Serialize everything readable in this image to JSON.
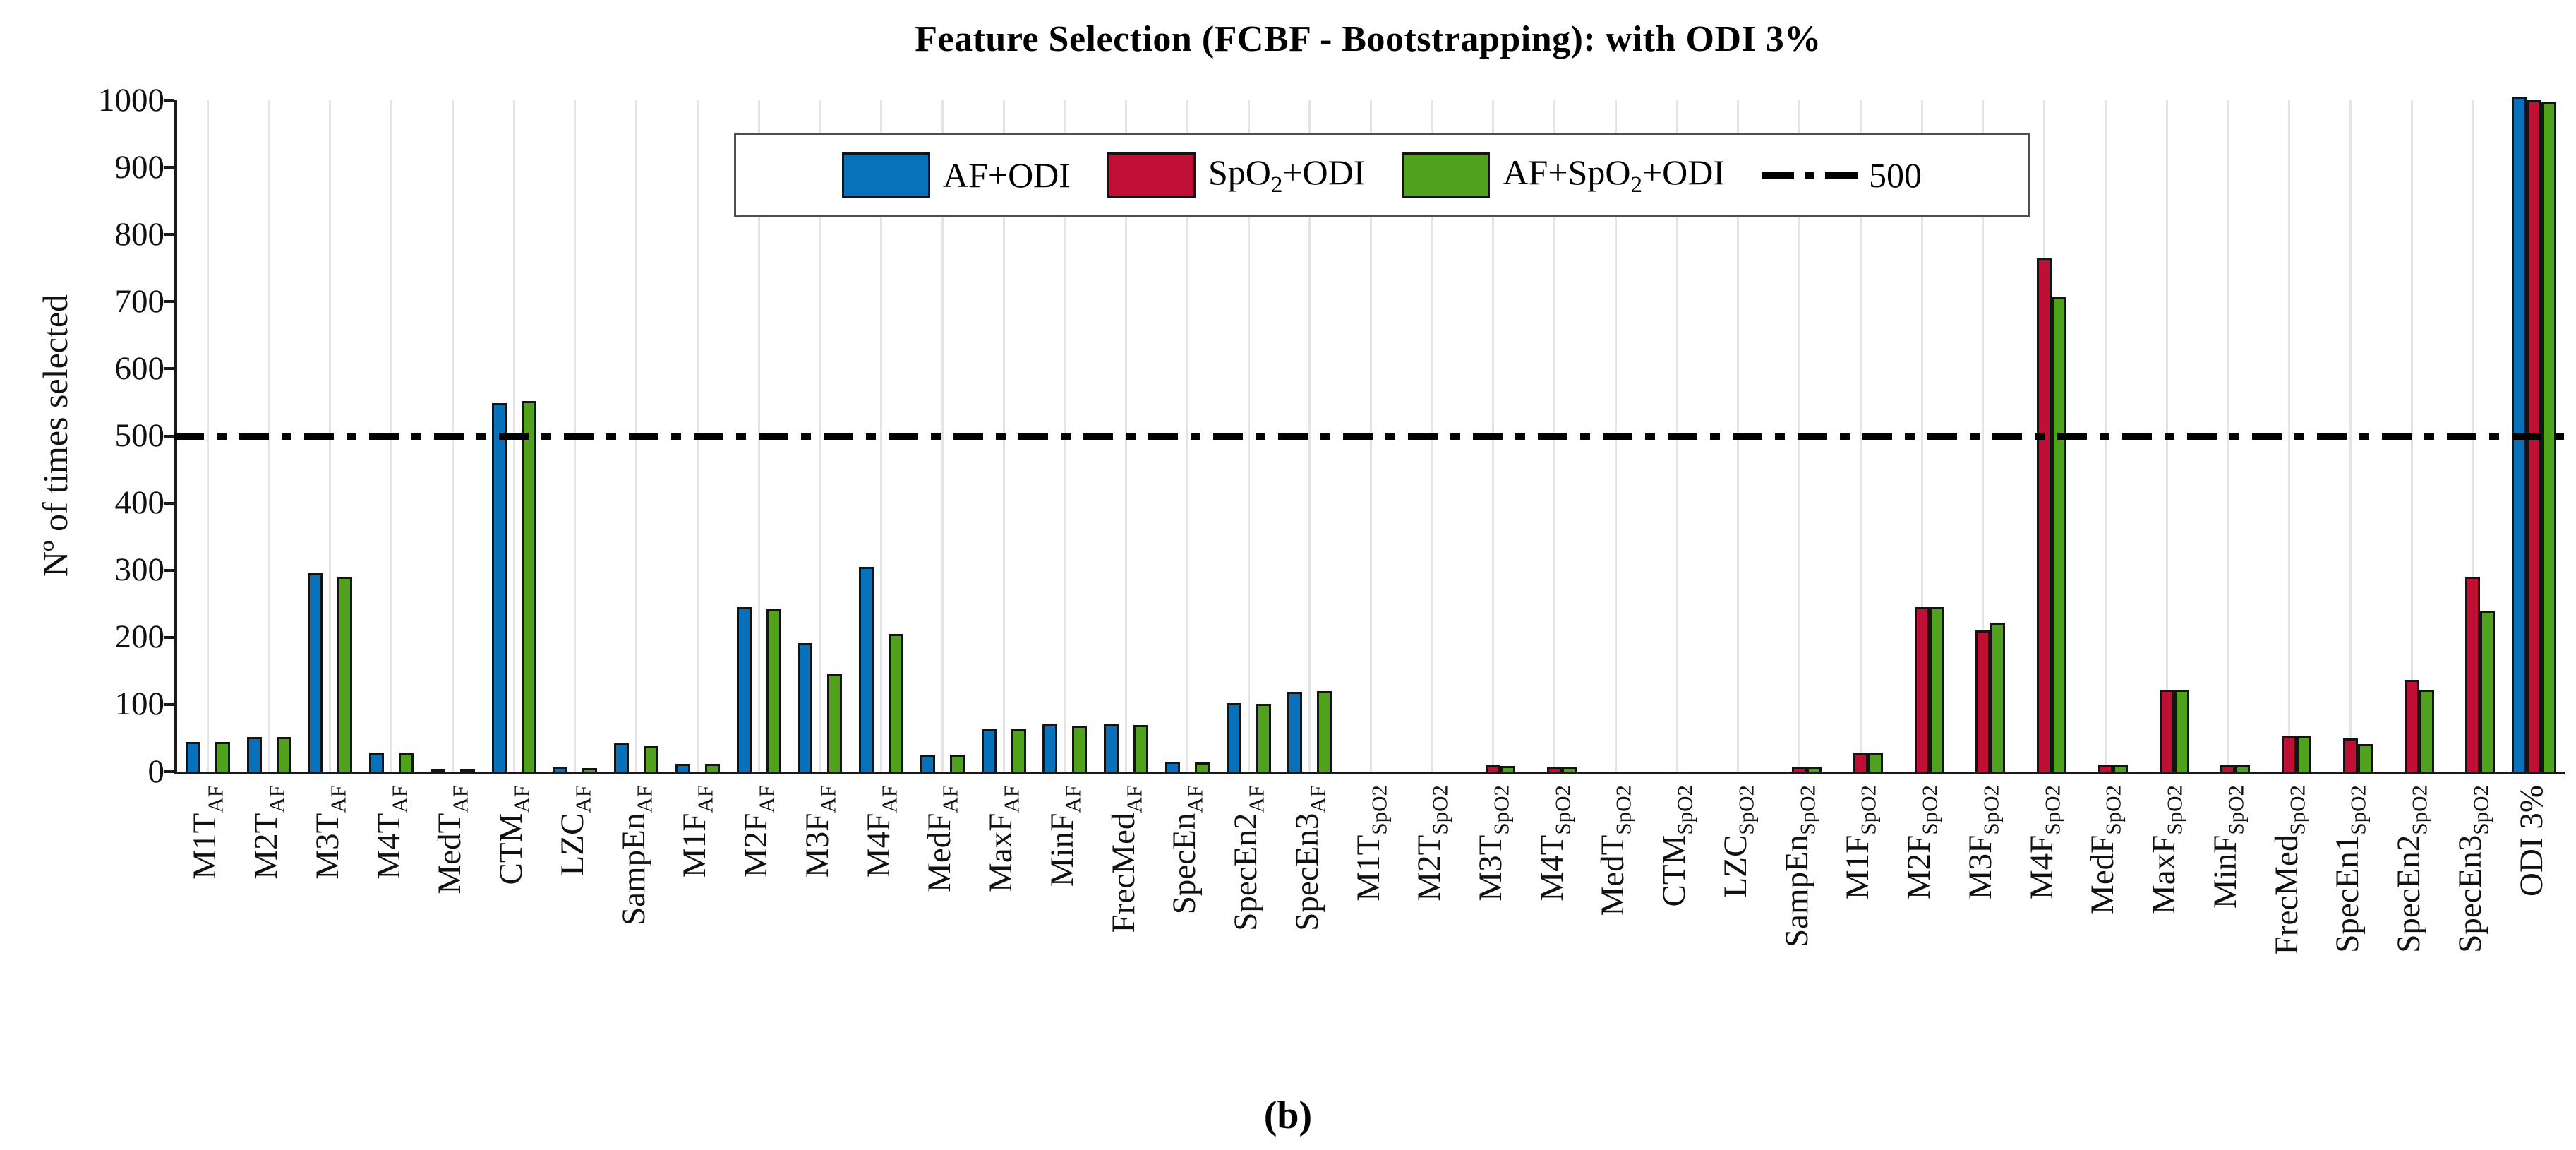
{
  "title": "Feature Selection (FCBF - Bootstrapping): with ODI 3%",
  "caption": "(b)",
  "y_axis": {
    "label": "Nº of times selected",
    "ticks": [
      0,
      100,
      200,
      300,
      400,
      500,
      600,
      700,
      800,
      900,
      1000
    ],
    "min": 0,
    "max": 1000
  },
  "legend": {
    "items": [
      {
        "pre": "AF+ODI",
        "sub": "",
        "post": "",
        "color": "#0772BB"
      },
      {
        "pre": "SpO",
        "sub": "2",
        "post": "+ODI",
        "color": "#C00F35"
      },
      {
        "pre": "AF+SpO",
        "sub": "2",
        "post": "+ODI",
        "color": "#50A21C"
      }
    ],
    "threshold_label": "500"
  },
  "colors": {
    "blue": "#0772BB",
    "red": "#C00F35",
    "green": "#50A21C",
    "bar_border": "#141414",
    "threshold_line": "#000000",
    "gridline": "#e4e4e4"
  },
  "chart_data": {
    "type": "bar",
    "title": "Feature Selection (FCBF - Bootstrapping): with ODI 3%",
    "xlabel": "",
    "ylabel": "Nº of times selected",
    "ylim": [
      0,
      1000
    ],
    "grid": "vertical-only",
    "legend_position": "top-center",
    "threshold_line": {
      "value": 500,
      "style": "dash-dot",
      "color": "#000000",
      "label": "500"
    },
    "categories": [
      {
        "label": "M1T",
        "sub": "AF"
      },
      {
        "label": "M2T",
        "sub": "AF"
      },
      {
        "label": "M3T",
        "sub": "AF"
      },
      {
        "label": "M4T",
        "sub": "AF"
      },
      {
        "label": "MedT",
        "sub": "AF"
      },
      {
        "label": "CTM",
        "sub": "AF"
      },
      {
        "label": "LZC",
        "sub": "AF"
      },
      {
        "label": "SampEn",
        "sub": "AF"
      },
      {
        "label": "M1F",
        "sub": "AF"
      },
      {
        "label": "M2F",
        "sub": "AF"
      },
      {
        "label": "M3F",
        "sub": "AF"
      },
      {
        "label": "M4F",
        "sub": "AF"
      },
      {
        "label": "MedF",
        "sub": "AF"
      },
      {
        "label": "MaxF",
        "sub": "AF"
      },
      {
        "label": "MinF",
        "sub": "AF"
      },
      {
        "label": "FrecMed",
        "sub": "AF"
      },
      {
        "label": "SpecEn",
        "sub": "AF"
      },
      {
        "label": "SpecEn2",
        "sub": "AF"
      },
      {
        "label": "SpecEn3",
        "sub": "AF"
      },
      {
        "label": "M1T",
        "sub": "SpO2"
      },
      {
        "label": "M2T",
        "sub": "SpO2"
      },
      {
        "label": "M3T",
        "sub": "SpO2"
      },
      {
        "label": "M4T",
        "sub": "SpO2"
      },
      {
        "label": "MedT",
        "sub": "SpO2"
      },
      {
        "label": "CTM",
        "sub": "SpO2"
      },
      {
        "label": "LZC",
        "sub": "SpO2"
      },
      {
        "label": "SampEn",
        "sub": "SpO2"
      },
      {
        "label": "M1F",
        "sub": "SpO2"
      },
      {
        "label": "M2F",
        "sub": "SpO2"
      },
      {
        "label": "M3F",
        "sub": "SpO2"
      },
      {
        "label": "M4F",
        "sub": "SpO2"
      },
      {
        "label": "MedF",
        "sub": "SpO2"
      },
      {
        "label": "MaxF",
        "sub": "SpO2"
      },
      {
        "label": "MinF",
        "sub": "SpO2"
      },
      {
        "label": "FrecMed",
        "sub": "SpO2"
      },
      {
        "label": "SpecEn1",
        "sub": "SpO2"
      },
      {
        "label": "SpecEn2",
        "sub": "SpO2"
      },
      {
        "label": "SpecEn3",
        "sub": "SpO2"
      },
      {
        "label": "ODI 3%",
        "sub": ""
      }
    ],
    "series": [
      {
        "name": "AF+ODI",
        "color": "#0772BB",
        "values": [
          44,
          52,
          295,
          28,
          2,
          549,
          6,
          42,
          12,
          245,
          191,
          305,
          25,
          64,
          70,
          70,
          15,
          102,
          119,
          0,
          0,
          0,
          0,
          0,
          0,
          0,
          0,
          0,
          0,
          0,
          0,
          0,
          0,
          0,
          0,
          0,
          0,
          0,
          1005
        ]
      },
      {
        "name": "SpO2+ODI",
        "color": "#C00F35",
        "values": [
          0,
          0,
          0,
          0,
          0,
          0,
          0,
          0,
          0,
          0,
          0,
          0,
          0,
          0,
          0,
          0,
          0,
          0,
          0,
          0,
          0,
          9,
          6,
          0,
          0,
          0,
          7,
          28,
          245,
          210,
          765,
          11,
          122,
          10,
          54,
          49,
          137,
          290,
          1000
        ]
      },
      {
        "name": "AF+SpO2+ODI",
        "color": "#50A21C",
        "values": [
          44,
          52,
          290,
          27,
          2,
          552,
          5,
          38,
          12,
          243,
          145,
          205,
          25,
          64,
          68,
          69,
          14,
          101,
          120,
          0,
          0,
          8,
          6,
          0,
          0,
          0,
          6,
          28,
          245,
          222,
          707,
          11,
          122,
          10,
          54,
          41,
          122,
          240,
          997
        ]
      }
    ]
  }
}
